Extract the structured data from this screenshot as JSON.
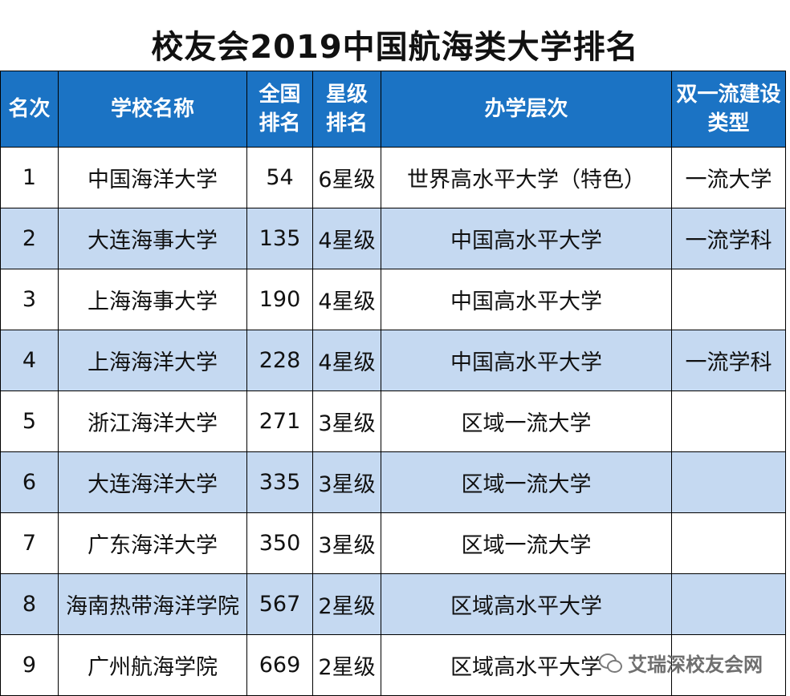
{
  "title": "校友会2019中国航海类大学排名",
  "table": {
    "headers": [
      {
        "lines": [
          "名次"
        ]
      },
      {
        "lines": [
          "学校名称"
        ]
      },
      {
        "lines": [
          "全国",
          "排名"
        ]
      },
      {
        "lines": [
          "星级",
          "排名"
        ]
      },
      {
        "lines": [
          "办学层次"
        ]
      },
      {
        "lines": [
          "双一流建设",
          "类型"
        ]
      }
    ],
    "rows": [
      {
        "rank": "1",
        "school": "中国海洋大学",
        "national_rank": "54",
        "star_level": "6星级",
        "level": "世界高水平大学（特色）",
        "double_first_class": "一流大学"
      },
      {
        "rank": "2",
        "school": "大连海事大学",
        "national_rank": "135",
        "star_level": "4星级",
        "level": "中国高水平大学",
        "double_first_class": "一流学科"
      },
      {
        "rank": "3",
        "school": "上海海事大学",
        "national_rank": "190",
        "star_level": "4星级",
        "level": "中国高水平大学",
        "double_first_class": ""
      },
      {
        "rank": "4",
        "school": "上海海洋大学",
        "national_rank": "228",
        "star_level": "4星级",
        "level": "中国高水平大学",
        "double_first_class": "一流学科"
      },
      {
        "rank": "5",
        "school": "浙江海洋大学",
        "national_rank": "271",
        "star_level": "3星级",
        "level": "区域一流大学",
        "double_first_class": ""
      },
      {
        "rank": "6",
        "school": "大连海洋大学",
        "national_rank": "335",
        "star_level": "3星级",
        "level": "区域一流大学",
        "double_first_class": ""
      },
      {
        "rank": "7",
        "school": "广东海洋大学",
        "national_rank": "350",
        "star_level": "3星级",
        "level": "区域一流大学",
        "double_first_class": ""
      },
      {
        "rank": "8",
        "school": "海南热带海洋学院",
        "national_rank": "567",
        "star_level": "2星级",
        "level": "区域高水平大学",
        "double_first_class": ""
      },
      {
        "rank": "9",
        "school": "广州航海学院",
        "national_rank": "669",
        "star_level": "2星级",
        "level": "区域高水平大学",
        "double_first_class": ""
      }
    ]
  },
  "watermark": {
    "icon": "wechat-icon",
    "text": "艾瑞深校友会网"
  },
  "colors": {
    "header_bg": "#1b73c4",
    "header_text": "#ffffff",
    "alt_row_bg": "#c5d9f1",
    "plain_row_bg": "#ffffff"
  }
}
